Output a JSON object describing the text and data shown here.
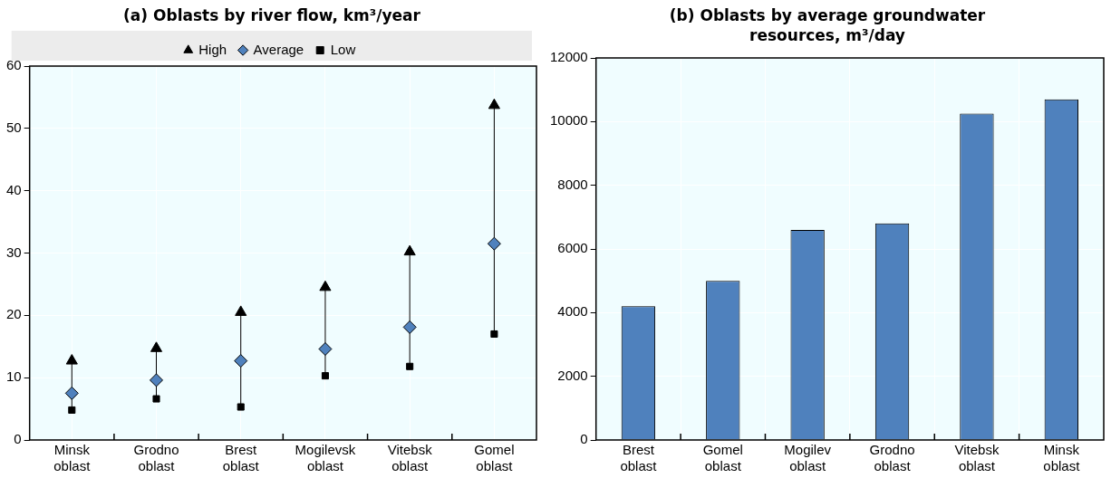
{
  "chart_data": [
    {
      "type": "scatter",
      "title": "(a) Oblasts by river flow, km³/year",
      "categories": [
        "Minsk oblast",
        "Grodno oblast",
        "Brest oblast",
        "Mogilevsk oblast",
        "Vitebsk oblast",
        "Gomel oblast"
      ],
      "series": [
        {
          "name": "High",
          "color": "#000000",
          "marker": "triangle",
          "values": [
            12.7,
            14.7,
            20.5,
            24.5,
            30.2,
            53.7
          ]
        },
        {
          "name": "Average",
          "color": "#4f81bd",
          "marker": "diamond",
          "values": [
            7.5,
            9.6,
            12.7,
            14.6,
            18.1,
            31.5
          ]
        },
        {
          "name": "Low",
          "color": "#000000",
          "marker": "square",
          "values": [
            4.8,
            6.6,
            5.3,
            10.3,
            11.8,
            17.0
          ]
        }
      ],
      "ylim": [
        0,
        60
      ],
      "yticks": [
        0,
        10,
        20,
        30,
        40,
        50,
        60
      ],
      "grid": true,
      "legend": "top"
    },
    {
      "type": "bar",
      "title": "(b) Oblasts by average groundwater resources, m³/day",
      "categories": [
        "Brest oblast",
        "Gomel oblast",
        "Mogilev oblast",
        "Grodno oblast",
        "Vitebsk oblast",
        "Minsk oblast"
      ],
      "values": [
        4200,
        5000,
        6600,
        6800,
        10250,
        10700
      ],
      "color": "#4f81bd",
      "ylim": [
        0,
        12000
      ],
      "yticks": [
        0,
        2000,
        4000,
        6000,
        8000,
        10000,
        12000
      ],
      "grid": true
    }
  ]
}
